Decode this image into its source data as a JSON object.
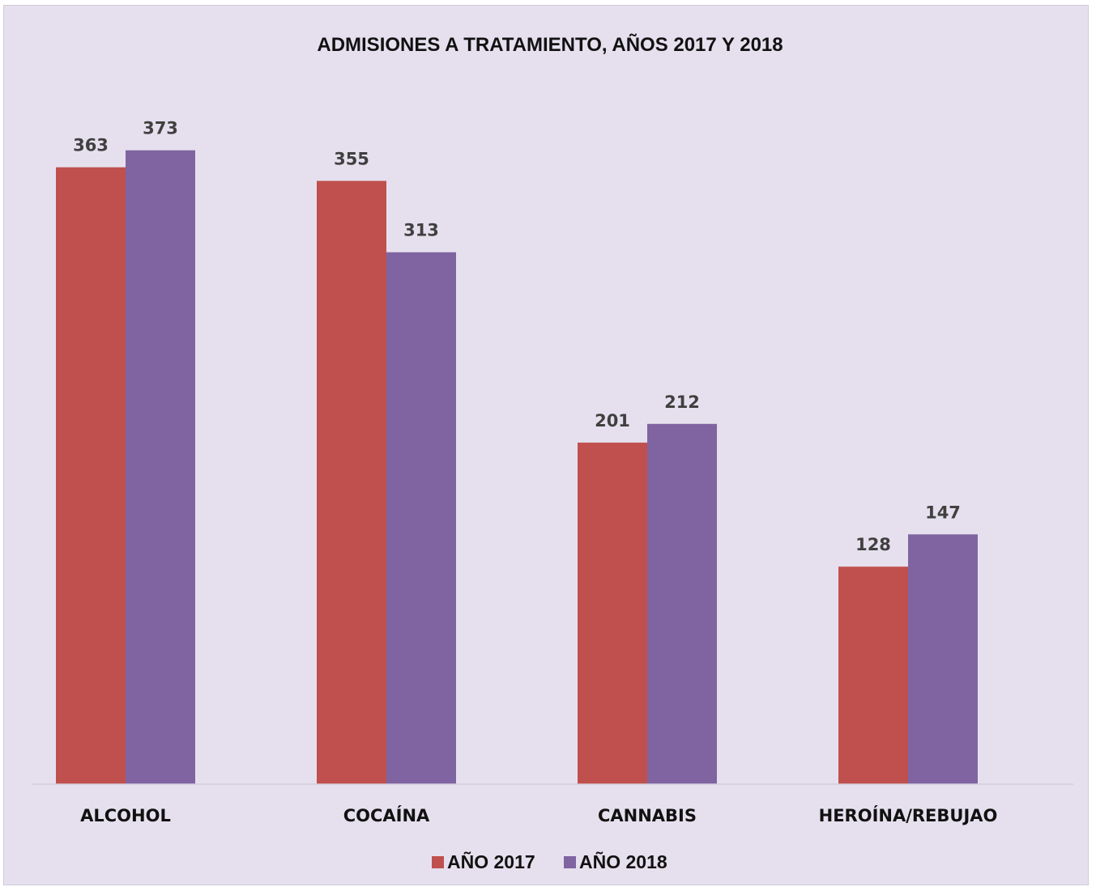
{
  "chart_data": {
    "type": "bar",
    "title": "ADMISIONES A TRATAMIENTO, AÑOS 2017 Y 2018",
    "categories": [
      "ALCOHOL",
      "COCAÍNA",
      "CANNABIS",
      "HEROÍNA/REBUJAO"
    ],
    "series": [
      {
        "name": "AÑO 2017",
        "values": [
          363,
          355,
          201,
          128
        ],
        "color": "#c0504d"
      },
      {
        "name": "AÑO 2018",
        "values": [
          373,
          313,
          212,
          147
        ],
        "color": "#8064a2"
      }
    ],
    "ylim": [
      0,
      400
    ],
    "grid": false,
    "legend_position": "bottom",
    "data_labels": true,
    "background": "#e6e0ee"
  }
}
